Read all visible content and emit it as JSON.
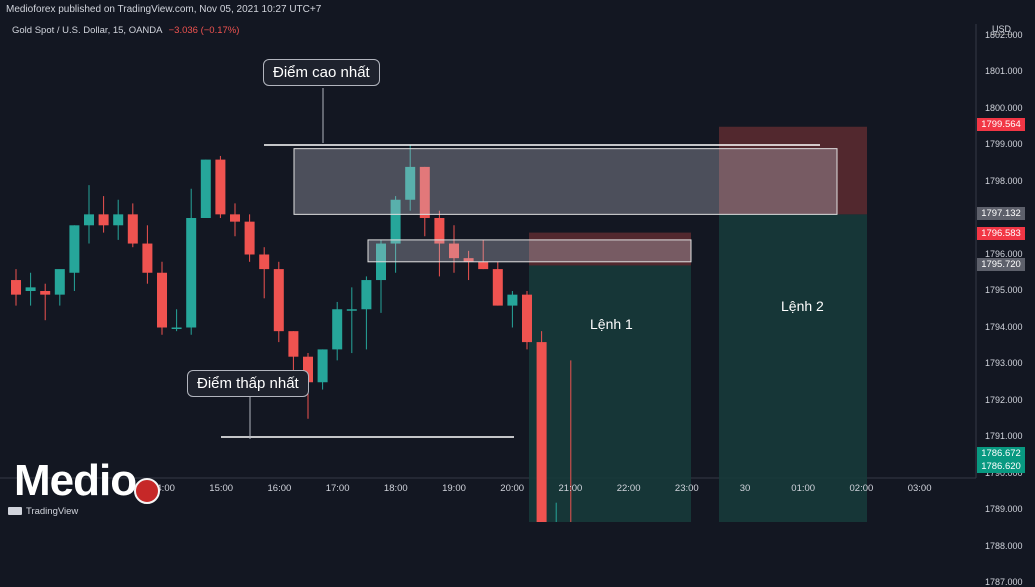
{
  "header": {
    "publisher": "Medioforex published on TradingView.com, Nov 05, 2021 10:27 UTC+7",
    "symbol": "Gold Spot / U.S. Dollar, 15, OANDA",
    "change": "−3.036 (−0.17%)",
    "currency": "USD"
  },
  "annotations": {
    "high_label": "Điểm cao nhất",
    "low_label": "Điểm thấp nhất",
    "order1_label": "Lệnh 1",
    "order2_label": "Lệnh 2"
  },
  "price_tags": [
    {
      "value": "1799.564",
      "color": "#f23645"
    },
    {
      "value": "1797.132",
      "color": "#5d606b"
    },
    {
      "value": "1796.583",
      "color": "#f23645"
    },
    {
      "value": "1795.720",
      "color": "#5d606b"
    },
    {
      "value": "1786.672",
      "color": "#089981"
    },
    {
      "value": "1786.620",
      "color": "#089981"
    }
  ],
  "watermark": {
    "brand": "Medio",
    "platform": "TradingView"
  },
  "chart_data": {
    "type": "candlestick",
    "y_ticks": [
      "1802.000",
      "1801.000",
      "1800.000",
      "1799.000",
      "1798.000",
      "1797.000",
      "1796.000",
      "1795.000",
      "1794.000",
      "1793.000",
      "1792.000",
      "1791.000",
      "1790.000",
      "1789.000",
      "1788.000",
      "1787.000"
    ],
    "x_ticks": [
      "14:00",
      "15:00",
      "16:00",
      "17:00",
      "18:00",
      "19:00",
      "20:00",
      "21:00",
      "22:00",
      "23:00",
      "30",
      "01:00",
      "02:00",
      "03:00"
    ],
    "candles": [
      {
        "o": 1795.3,
        "h": 1795.6,
        "l": 1794.6,
        "c": 1794.9
      },
      {
        "o": 1795.0,
        "h": 1795.5,
        "l": 1794.6,
        "c": 1795.1
      },
      {
        "o": 1795.0,
        "h": 1795.2,
        "l": 1794.2,
        "c": 1794.9
      },
      {
        "o": 1794.9,
        "h": 1795.5,
        "l": 1794.6,
        "c": 1795.6
      },
      {
        "o": 1795.5,
        "h": 1796.8,
        "l": 1795.0,
        "c": 1796.8
      },
      {
        "o": 1796.8,
        "h": 1797.9,
        "l": 1796.3,
        "c": 1797.1
      },
      {
        "o": 1797.1,
        "h": 1797.6,
        "l": 1796.6,
        "c": 1796.8
      },
      {
        "o": 1796.8,
        "h": 1797.5,
        "l": 1796.4,
        "c": 1797.1
      },
      {
        "o": 1797.1,
        "h": 1797.4,
        "l": 1796.2,
        "c": 1796.3
      },
      {
        "o": 1796.3,
        "h": 1796.8,
        "l": 1795.2,
        "c": 1795.5
      },
      {
        "o": 1795.5,
        "h": 1795.8,
        "l": 1793.8,
        "c": 1794.0
      },
      {
        "o": 1794.0,
        "h": 1794.5,
        "l": 1793.9,
        "c": 1794.0
      },
      {
        "o": 1794.0,
        "h": 1797.8,
        "l": 1793.8,
        "c": 1797.0
      },
      {
        "o": 1797.0,
        "h": 1798.6,
        "l": 1797.0,
        "c": 1798.6
      },
      {
        "o": 1798.6,
        "h": 1798.7,
        "l": 1797.0,
        "c": 1797.1
      },
      {
        "o": 1797.1,
        "h": 1797.4,
        "l": 1796.5,
        "c": 1796.9
      },
      {
        "o": 1796.9,
        "h": 1797.1,
        "l": 1795.8,
        "c": 1796.0
      },
      {
        "o": 1796.0,
        "h": 1796.2,
        "l": 1794.8,
        "c": 1795.6
      },
      {
        "o": 1795.6,
        "h": 1795.8,
        "l": 1793.6,
        "c": 1793.9
      },
      {
        "o": 1793.9,
        "h": 1793.9,
        "l": 1792.4,
        "c": 1793.2
      },
      {
        "o": 1793.2,
        "h": 1793.3,
        "l": 1791.5,
        "c": 1792.5
      },
      {
        "o": 1792.5,
        "h": 1793.4,
        "l": 1792.3,
        "c": 1793.4
      },
      {
        "o": 1793.4,
        "h": 1794.7,
        "l": 1793.1,
        "c": 1794.5
      },
      {
        "o": 1794.5,
        "h": 1795.1,
        "l": 1793.3,
        "c": 1794.5
      },
      {
        "o": 1794.5,
        "h": 1795.4,
        "l": 1793.4,
        "c": 1795.3
      },
      {
        "o": 1795.3,
        "h": 1796.4,
        "l": 1794.4,
        "c": 1796.3
      },
      {
        "o": 1796.3,
        "h": 1797.6,
        "l": 1795.5,
        "c": 1797.5
      },
      {
        "o": 1797.5,
        "h": 1799.0,
        "l": 1797.2,
        "c": 1798.4
      },
      {
        "o": 1798.4,
        "h": 1798.4,
        "l": 1796.5,
        "c": 1797.0
      },
      {
        "o": 1797.0,
        "h": 1797.2,
        "l": 1795.4,
        "c": 1796.3
      },
      {
        "o": 1796.3,
        "h": 1796.8,
        "l": 1795.5,
        "c": 1795.9
      },
      {
        "o": 1795.9,
        "h": 1796.1,
        "l": 1795.3,
        "c": 1795.8
      },
      {
        "o": 1795.8,
        "h": 1796.4,
        "l": 1795.6,
        "c": 1795.6
      },
      {
        "o": 1795.6,
        "h": 1795.8,
        "l": 1794.6,
        "c": 1794.6
      },
      {
        "o": 1794.6,
        "h": 1795.0,
        "l": 1794.0,
        "c": 1794.9
      },
      {
        "o": 1794.9,
        "h": 1795.0,
        "l": 1793.4,
        "c": 1793.6
      },
      {
        "o": 1793.6,
        "h": 1793.9,
        "l": 1786.7,
        "c": 1787.1
      },
      {
        "o": 1787.1,
        "h": 1789.2,
        "l": 1786.6,
        "c": 1787.2
      },
      {
        "o": 1787.2,
        "h": 1793.1,
        "l": 1786.4,
        "c": 1786.6
      }
    ],
    "levels": {
      "high_line": 1799.0,
      "low_line": 1791.0
    },
    "zones": {
      "resistance_1": {
        "top": 1798.9,
        "bottom": 1797.1
      },
      "resistance_2": {
        "top": 1796.4,
        "bottom": 1795.8
      },
      "order_1": {
        "stop": 1796.6,
        "entry": 1795.7,
        "target": 1786.7
      },
      "order_2": {
        "stop": 1799.5,
        "entry": 1797.1,
        "target": 1786.7
      }
    }
  }
}
